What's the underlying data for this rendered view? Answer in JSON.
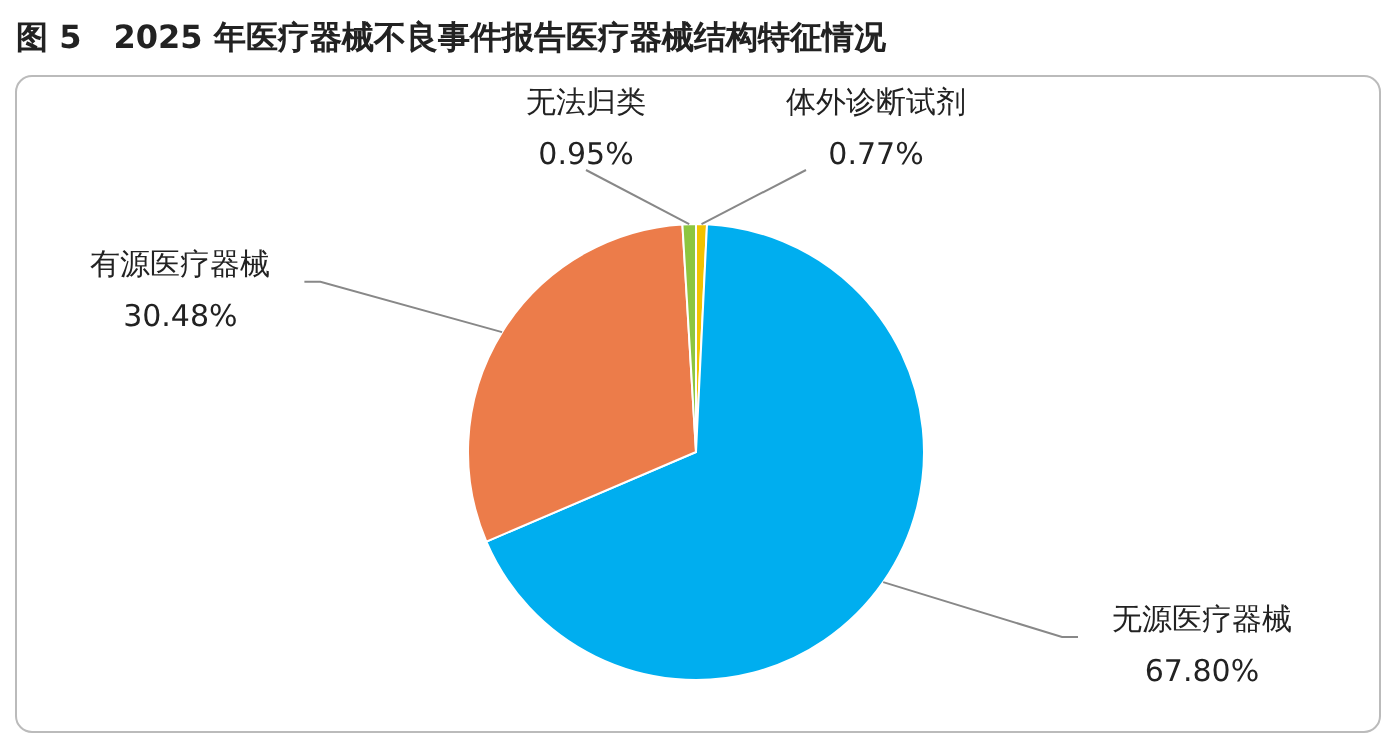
{
  "chart_data": {
    "type": "pie",
    "title": "图 5　2025 年医疗器械不良事件报告医疗器械结构特征情况",
    "categories": [
      "体外诊断试剂",
      "无源医疗器械",
      "有源医疗器械",
      "无法归类"
    ],
    "values": [
      0.77,
      67.8,
      30.48,
      0.95
    ],
    "value_labels": [
      "0.77%",
      "67.80%",
      "30.48%",
      "0.95%"
    ],
    "colors": [
      "#f2c200",
      "#00aeef",
      "#ec7c4a",
      "#8dc63f"
    ],
    "legend": false
  }
}
